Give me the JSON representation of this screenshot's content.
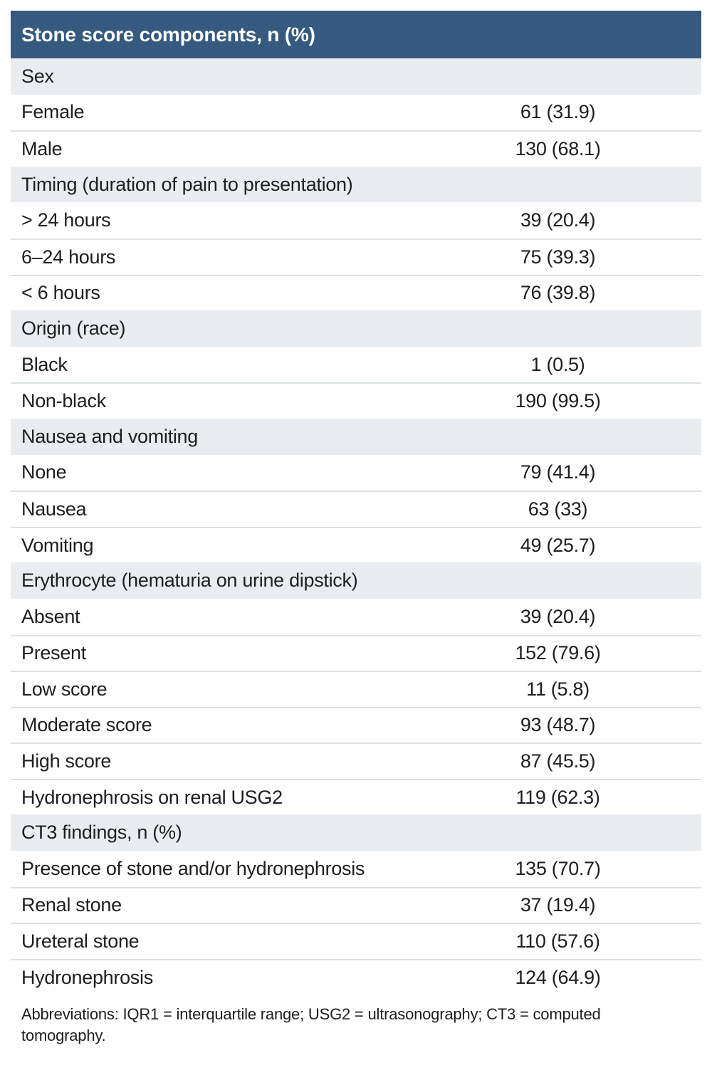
{
  "colors": {
    "header_bg": "#36597F",
    "header_text": "#FFFFFF",
    "section_bg": "#E9EDF1",
    "row_bg": "#FFFFFF",
    "divider": "#DCE1E5",
    "text": "#1E1E1E"
  },
  "table": {
    "title": "Stone score components, n (%)",
    "rows": [
      {
        "type": "section",
        "label": "Sex"
      },
      {
        "type": "data",
        "label": "Female",
        "value": "61 (31.9)"
      },
      {
        "type": "data",
        "label": "Male",
        "value": "130 (68.1)"
      },
      {
        "type": "section",
        "label": "Timing (duration of pain to presentation)"
      },
      {
        "type": "data",
        "label": "> 24 hours",
        "value": "39 (20.4)"
      },
      {
        "type": "data",
        "label": "6–24 hours",
        "value": "75 (39.3)"
      },
      {
        "type": "data",
        "label": "< 6 hours",
        "value": "76 (39.8)"
      },
      {
        "type": "section",
        "label": "Origin (race)"
      },
      {
        "type": "data",
        "label": "Black",
        "value": "1 (0.5)"
      },
      {
        "type": "data",
        "label": "Non-black",
        "value": "190 (99.5)"
      },
      {
        "type": "section",
        "label": "Nausea and vomiting"
      },
      {
        "type": "data",
        "label": "None",
        "value": "79 (41.4)"
      },
      {
        "type": "data",
        "label": "Nausea",
        "value": "63 (33)"
      },
      {
        "type": "data",
        "label": "Vomiting",
        "value": "49 (25.7)"
      },
      {
        "type": "section",
        "label": "Erythrocyte (hematuria on urine dipstick)"
      },
      {
        "type": "data",
        "label": "Absent",
        "value": "39 (20.4)"
      },
      {
        "type": "data",
        "label": "Present",
        "value": "152 (79.6)"
      },
      {
        "type": "data",
        "label": "Low score",
        "value": "11 (5.8)"
      },
      {
        "type": "data",
        "label": "Moderate score",
        "value": "93 (48.7)"
      },
      {
        "type": "data",
        "label": "High score",
        "value": "87 (45.5)"
      },
      {
        "type": "data",
        "label": "Hydronephrosis on renal USG2",
        "value": "119 (62.3)"
      },
      {
        "type": "section",
        "label": "CT3 findings, n (%)"
      },
      {
        "type": "data",
        "label": "Presence of stone and/or hydronephrosis",
        "value": "135 (70.7)"
      },
      {
        "type": "data",
        "label": "Renal stone",
        "value": "37 (19.4)"
      },
      {
        "type": "data",
        "label": "Ureteral stone",
        "value": "110 (57.6)"
      },
      {
        "type": "data",
        "label": "Hydronephrosis",
        "value": "124 (64.9)"
      }
    ],
    "footnote": "Abbreviations: IQR1 = interquartile range; USG2 = ultrasonography; CT3 = computed tomography."
  },
  "chart_data": {
    "type": "table",
    "title": "Stone score components, n (%)",
    "sections": [
      {
        "section": "Sex",
        "categories": [
          "Female",
          "Male"
        ],
        "n": [
          61,
          130
        ],
        "pct": [
          31.9,
          68.1
        ]
      },
      {
        "section": "Timing (duration of pain to presentation)",
        "categories": [
          "> 24 hours",
          "6–24 hours",
          "< 6 hours"
        ],
        "n": [
          39,
          75,
          76
        ],
        "pct": [
          20.4,
          39.3,
          39.8
        ]
      },
      {
        "section": "Origin (race)",
        "categories": [
          "Black",
          "Non-black"
        ],
        "n": [
          1,
          190
        ],
        "pct": [
          0.5,
          99.5
        ]
      },
      {
        "section": "Nausea and vomiting",
        "categories": [
          "None",
          "Nausea",
          "Vomiting"
        ],
        "n": [
          79,
          63,
          49
        ],
        "pct": [
          41.4,
          33,
          25.7
        ]
      },
      {
        "section": "Erythrocyte (hematuria on urine dipstick)",
        "categories": [
          "Absent",
          "Present",
          "Low score",
          "Moderate score",
          "High score",
          "Hydronephrosis on renal USG2"
        ],
        "n": [
          39,
          152,
          11,
          93,
          87,
          119
        ],
        "pct": [
          20.4,
          79.6,
          5.8,
          48.7,
          45.5,
          62.3
        ]
      },
      {
        "section": "CT3 findings, n (%)",
        "categories": [
          "Presence of stone and/or hydronephrosis",
          "Renal stone",
          "Ureteral stone",
          "Hydronephrosis"
        ],
        "n": [
          135,
          37,
          110,
          124
        ],
        "pct": [
          70.7,
          19.4,
          57.6,
          64.9
        ]
      }
    ]
  }
}
